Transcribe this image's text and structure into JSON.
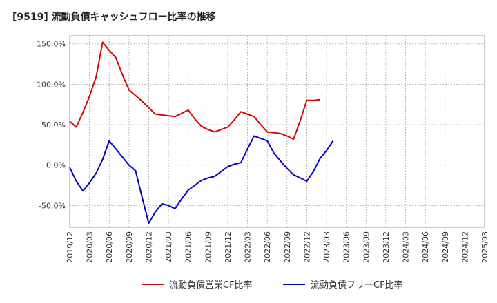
{
  "title": "[9519]  流動負債キャッシュフロー比率の推移",
  "chart_data": {
    "type": "line",
    "ylim": [
      -77,
      160
    ],
    "y_ticks": [
      -50,
      0,
      50,
      100,
      150
    ],
    "y_tick_labels": [
      "-50.0%",
      "0.0%",
      "50.0%",
      "100.0%",
      "150.0%"
    ],
    "x_tick_labels": [
      "2019/12",
      "2020/03",
      "2020/06",
      "2020/09",
      "2020/12",
      "2021/03",
      "2021/06",
      "2021/09",
      "2021/12",
      "2022/03",
      "2022/06",
      "2022/09",
      "2022/12",
      "2023/03",
      "2023/06",
      "2023/09",
      "2023/12",
      "2024/03",
      "2024/06",
      "2024/09",
      "2024/12",
      "2025/03"
    ],
    "grid": true,
    "legend_position": "bottom",
    "series": [
      {
        "name": "流動負債営業CF比率",
        "color": "#dd0000",
        "values": [
          54,
          47,
          65,
          85,
          109,
          152,
          142,
          133,
          112,
          93,
          86,
          79,
          71,
          63,
          62,
          61,
          60,
          64,
          68,
          57,
          48,
          44,
          41,
          44,
          47,
          56,
          66,
          63,
          60,
          50,
          41,
          40,
          39,
          36,
          32,
          55,
          80,
          80,
          81
        ]
      },
      {
        "name": "流動負債フリーCF比率",
        "color": "#0000cc",
        "values": [
          -3,
          -20,
          -32,
          -22,
          -10,
          7,
          30,
          20,
          10,
          0,
          -7,
          -40,
          -72,
          -58,
          -48,
          -50,
          -54,
          -42,
          -31,
          -25,
          -19,
          -16,
          -14,
          -8,
          -2,
          1,
          3,
          20,
          36,
          33,
          30,
          15,
          5,
          -4,
          -12,
          -16,
          -20,
          -8,
          8,
          18,
          30
        ]
      }
    ]
  }
}
